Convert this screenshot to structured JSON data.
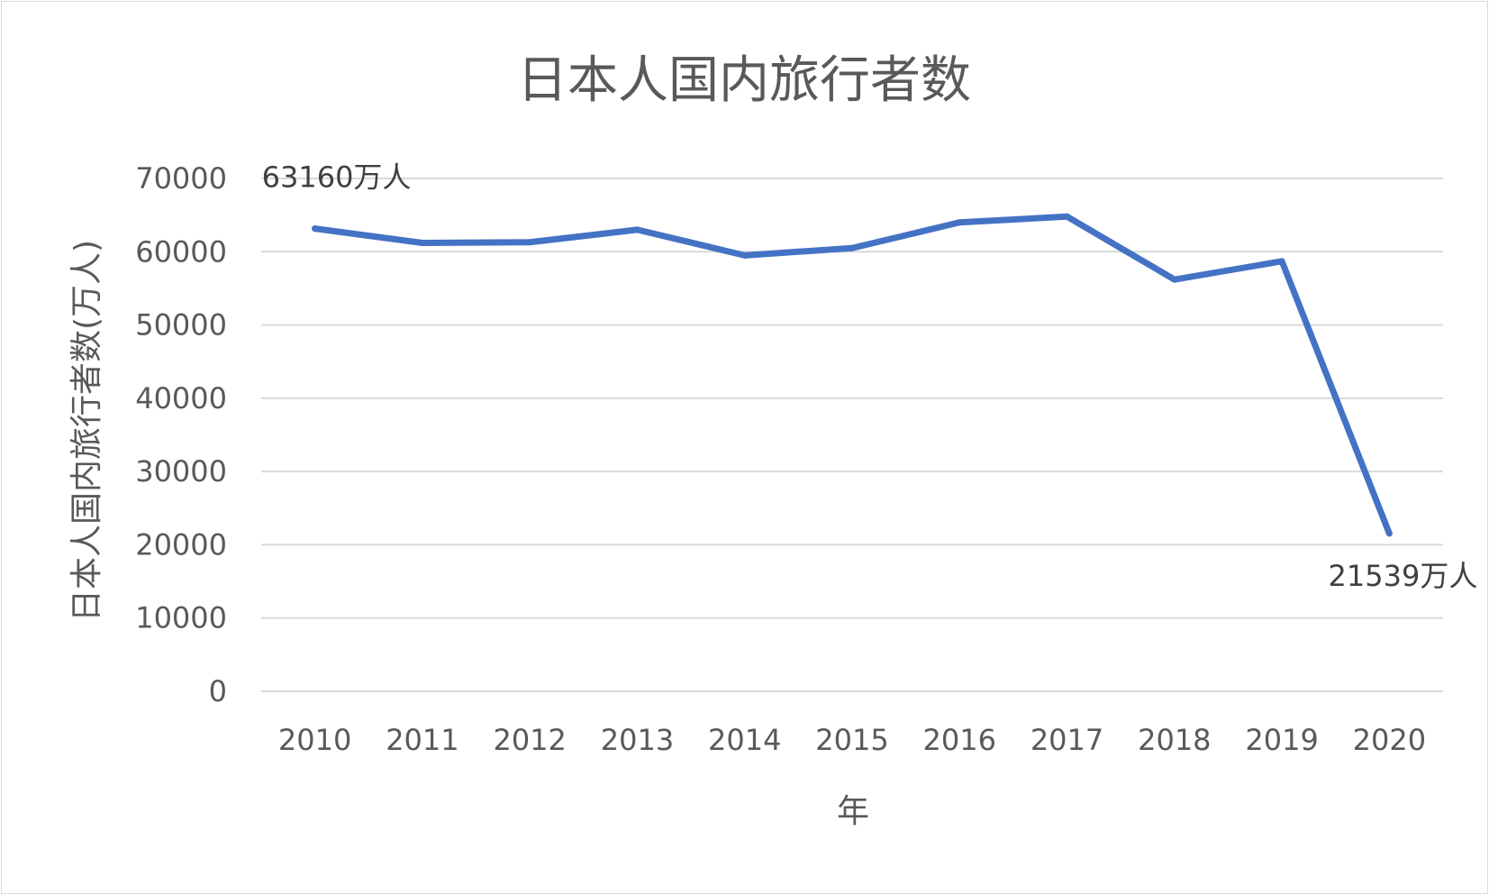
{
  "chart_data": {
    "type": "line",
    "title": "日本人国内旅行者数",
    "xlabel": "年",
    "ylabel": "日本人国内旅行者数(万人)",
    "categories": [
      "2010",
      "2011",
      "2012",
      "2013",
      "2014",
      "2015",
      "2016",
      "2017",
      "2018",
      "2019",
      "2020"
    ],
    "series": [
      {
        "values": [
          63160,
          61200,
          61300,
          63000,
          59500,
          60500,
          64000,
          64800,
          56200,
          58700,
          21539
        ]
      }
    ],
    "ylim": [
      0,
      70000
    ],
    "yticks": [
      0,
      10000,
      20000,
      30000,
      40000,
      50000,
      60000,
      70000
    ],
    "grid": true,
    "legend": "none",
    "data_labels": [
      {
        "index": 0,
        "text": "63160万人"
      },
      {
        "index": 10,
        "text": "21539万人"
      }
    ],
    "colors": {
      "line": "#4472c4",
      "grid": "#d9d9d9",
      "text": "#595959"
    }
  }
}
